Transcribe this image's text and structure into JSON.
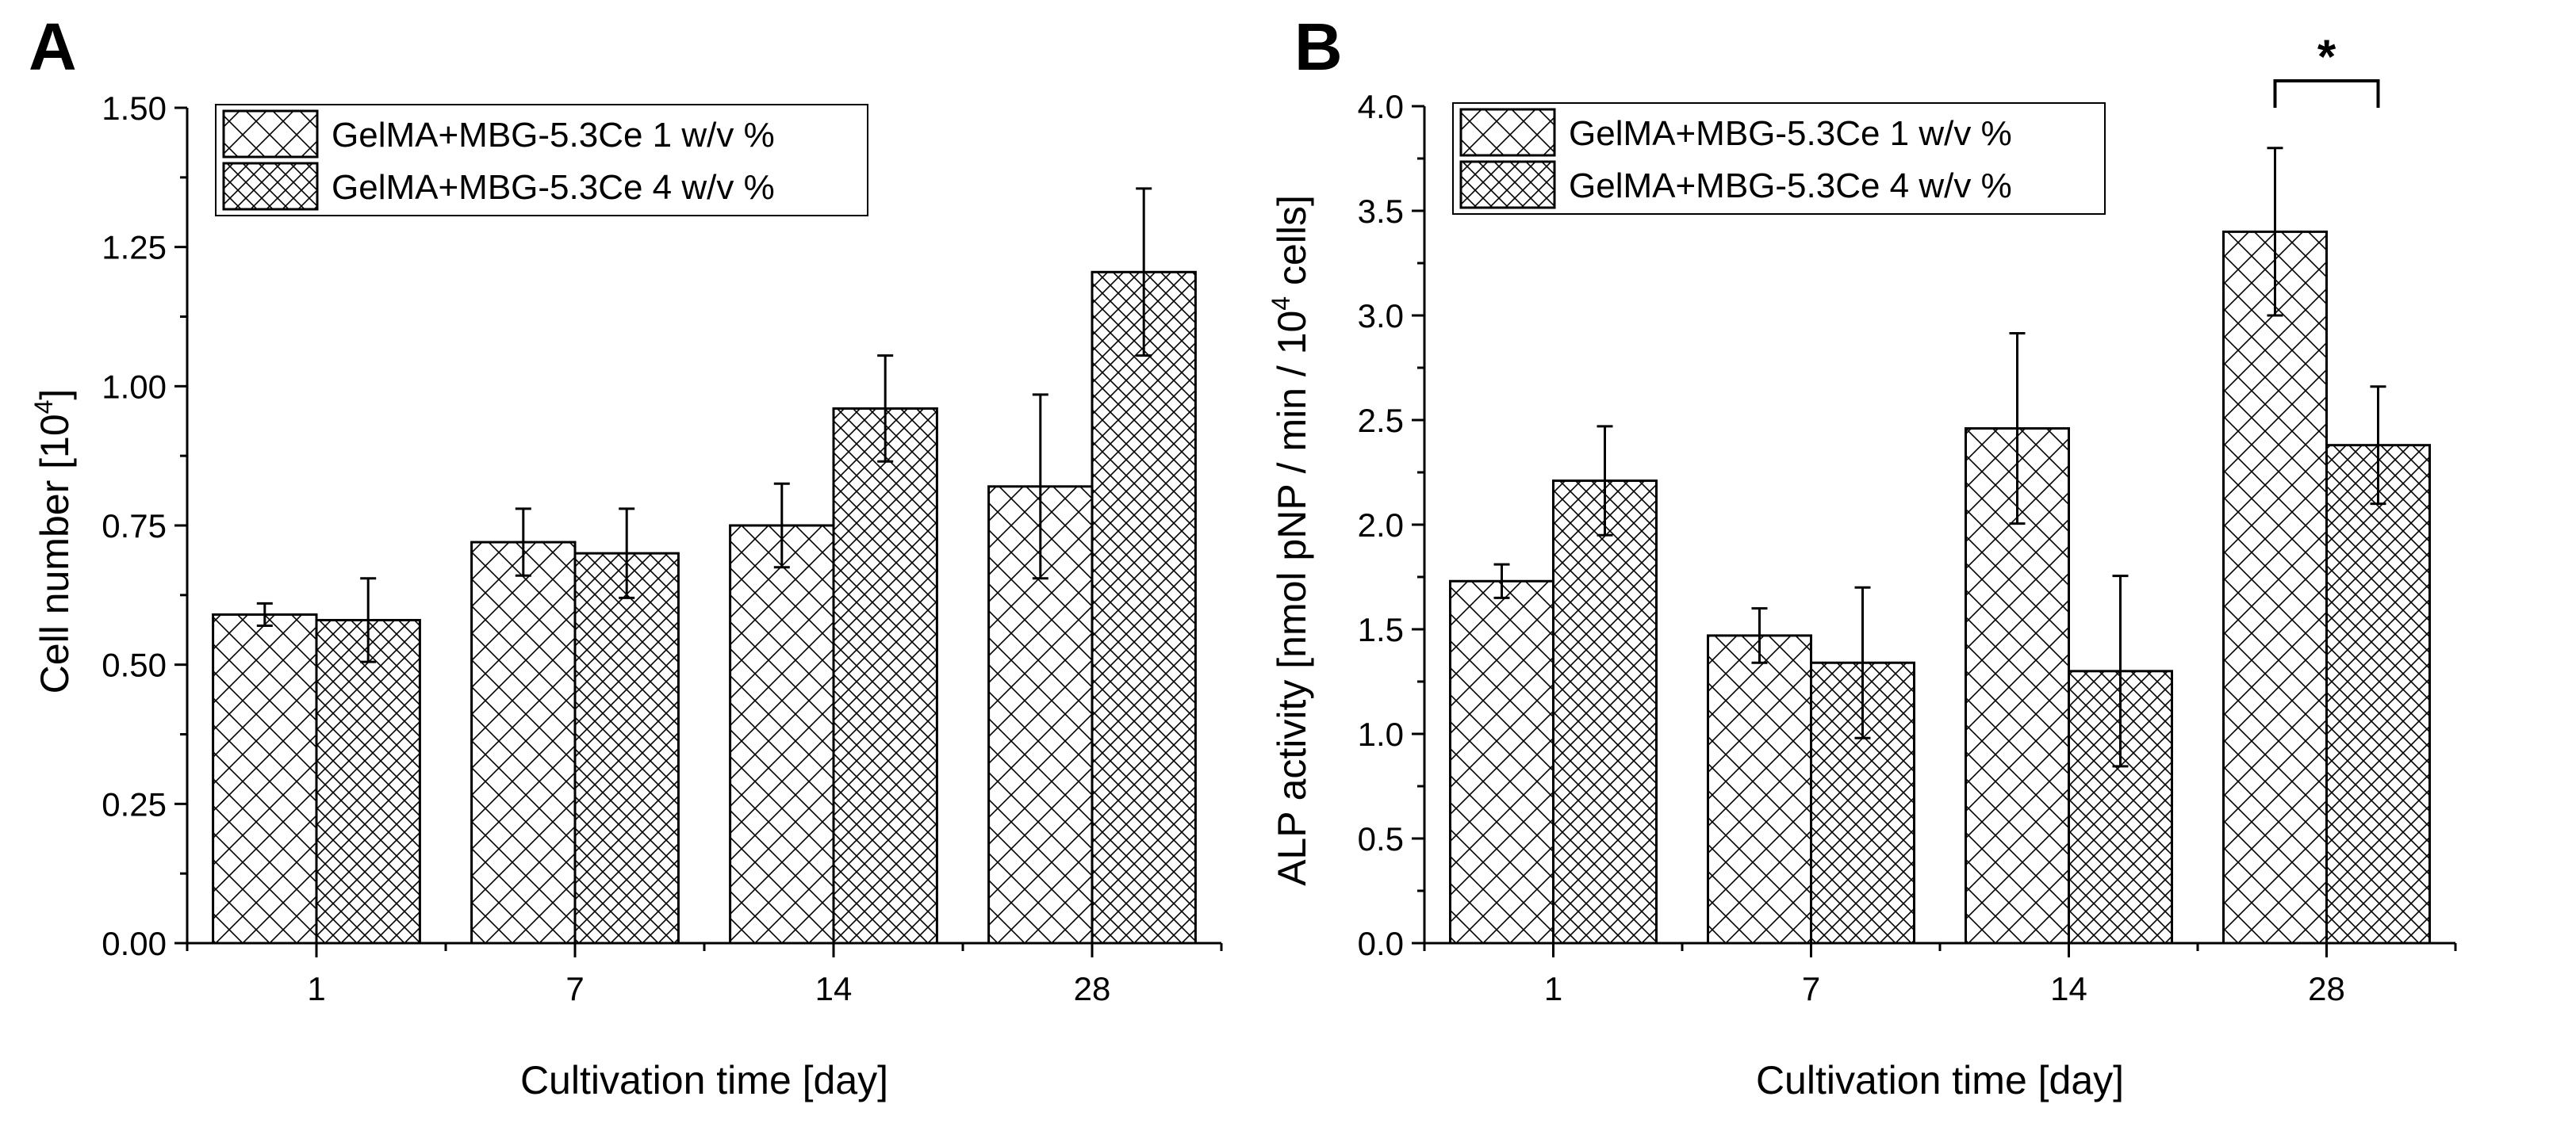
{
  "chart_data": [
    {
      "type": "bar",
      "panel_label": "A",
      "categories": [
        "1",
        "7",
        "14",
        "28"
      ],
      "xlabel": "Cultivation time [day]",
      "ylabel": {
        "text": "Cell number [10",
        "sup": "4",
        "tail": "]"
      },
      "ylim": [
        0,
        1.5
      ],
      "yticks": [
        0,
        0.25,
        0.5,
        0.75,
        1.0,
        1.25,
        1.5
      ],
      "ytick_labels": [
        "0.00",
        "0.25",
        "0.50",
        "0.75",
        "1.00",
        "1.25",
        "1.50"
      ],
      "grid": false,
      "legend_position": "top-left",
      "series": [
        {
          "name": "GelMA+MBG-5.3Ce 1 w/v %",
          "values": [
            0.59,
            0.72,
            0.75,
            0.82
          ],
          "errors": [
            0.02,
            0.06,
            0.075,
            0.165
          ],
          "pattern": "sparse-crosshatch"
        },
        {
          "name": "GelMA+MBG-5.3Ce 4 w/v %",
          "values": [
            0.58,
            0.7,
            0.96,
            1.205
          ],
          "errors": [
            0.075,
            0.08,
            0.095,
            0.15
          ],
          "pattern": "dense-crosshatch"
        }
      ],
      "annotations": []
    },
    {
      "type": "bar",
      "panel_label": "B",
      "categories": [
        "1",
        "7",
        "14",
        "28"
      ],
      "xlabel": "Cultivation time [day]",
      "ylabel": {
        "text": "ALP activity [nmol pNP / min / 10",
        "sup": "4",
        "tail": " cells]"
      },
      "ylim": [
        0,
        4.0
      ],
      "yticks": [
        0,
        0.5,
        1.0,
        1.5,
        2.0,
        2.5,
        3.0,
        3.5,
        4.0
      ],
      "ytick_labels": [
        "0.0",
        "0.5",
        "1.0",
        "1.5",
        "2.0",
        "2.5",
        "3.0",
        "3.5",
        "4.0"
      ],
      "grid": false,
      "legend_position": "top-left",
      "series": [
        {
          "name": "GelMA+MBG-5.3Ce 1 w/v %",
          "values": [
            1.73,
            1.47,
            2.46,
            3.4
          ],
          "errors": [
            0.08,
            0.13,
            0.455,
            0.4
          ],
          "pattern": "sparse-crosshatch"
        },
        {
          "name": "GelMA+MBG-5.3Ce 4 w/v %",
          "values": [
            2.21,
            1.34,
            1.3,
            2.38
          ],
          "errors": [
            0.26,
            0.36,
            0.455,
            0.28
          ],
          "pattern": "dense-crosshatch"
        }
      ],
      "annotations": [
        {
          "text": "*",
          "category": "28",
          "between": "series 1 and series 2"
        }
      ]
    }
  ]
}
